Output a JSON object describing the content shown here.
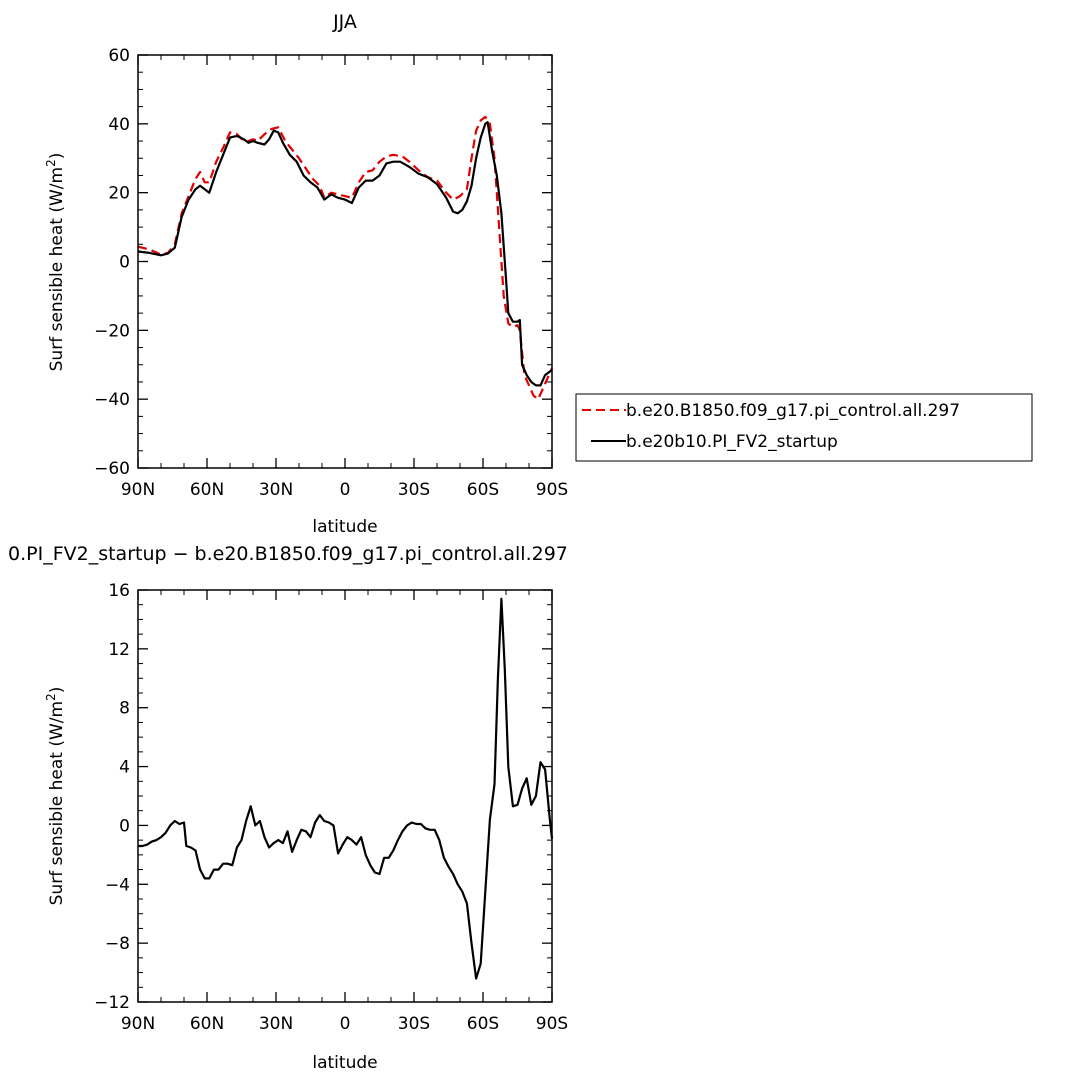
{
  "chart_data": [
    {
      "type": "line",
      "title": "JJA",
      "xlabel": "latitude",
      "ylabel": "Surf sensible heat (W/m²)",
      "ylabel_main": "Surf sensible heat (W/m",
      "ylabel_sup": "2",
      "ylabel_close": ")",
      "xlim": [
        90,
        -90
      ],
      "ylim": [
        -60,
        60
      ],
      "xticks": [
        90,
        60,
        30,
        0,
        -30,
        -60,
        -90
      ],
      "xtick_labels": [
        "90N",
        "60N",
        "30N",
        "0",
        "30S",
        "60S",
        "90S"
      ],
      "yticks": [
        -60,
        -40,
        -20,
        0,
        20,
        40,
        60
      ],
      "ytick_labels": [
        "−60",
        "−40",
        "−20",
        "0",
        "20",
        "40",
        "60"
      ],
      "grid": false,
      "legend_position": "right",
      "series": [
        {
          "name": "b.e20.B1850.f09_g17.pi_control.all.297",
          "color": "#e00000",
          "dash": "dashed",
          "points": [
            [
              90,
              4.3
            ],
            [
              85,
              3.5
            ],
            [
              80,
              2
            ],
            [
              77,
              2.5
            ],
            [
              74,
              5
            ],
            [
              71,
              14
            ],
            [
              68,
              19
            ],
            [
              65,
              24
            ],
            [
              63,
              26
            ],
            [
              61,
              23
            ],
            [
              59,
              23
            ],
            [
              56,
              29
            ],
            [
              53,
              33
            ],
            [
              50,
              37.5
            ],
            [
              47,
              37
            ],
            [
              44,
              35
            ],
            [
              42,
              35
            ],
            [
              40,
              35.5
            ],
            [
              38,
              35
            ],
            [
              35,
              37
            ],
            [
              32,
              38.5
            ],
            [
              29,
              39
            ],
            [
              26,
              35
            ],
            [
              23,
              32.5
            ],
            [
              20,
              30
            ],
            [
              17,
              27
            ],
            [
              14,
              24
            ],
            [
              11,
              22
            ],
            [
              9,
              18.5
            ],
            [
              6,
              20
            ],
            [
              3,
              19.5
            ],
            [
              0,
              19
            ],
            [
              -3,
              18.5
            ],
            [
              -6,
              23
            ],
            [
              -9,
              26
            ],
            [
              -12,
              26.5
            ],
            [
              -15,
              29
            ],
            [
              -18,
              30.5
            ],
            [
              -21,
              31
            ],
            [
              -25,
              30.5
            ],
            [
              -28,
              29
            ],
            [
              -32,
              26.5
            ],
            [
              -36,
              24.5
            ],
            [
              -40,
              23.5
            ],
            [
              -44,
              20
            ],
            [
              -47,
              18
            ],
            [
              -50,
              19
            ],
            [
              -53,
              21
            ],
            [
              -55,
              30
            ],
            [
              -57,
              38
            ],
            [
              -59,
              41
            ],
            [
              -61,
              42
            ],
            [
              -63,
              40
            ],
            [
              -65,
              30
            ],
            [
              -67,
              10
            ],
            [
              -69,
              -10
            ],
            [
              -71,
              -18
            ],
            [
              -73,
              -19
            ],
            [
              -75,
              -18.5
            ],
            [
              -76,
              -20
            ],
            [
              -78,
              -33
            ],
            [
              -80,
              -36
            ],
            [
              -82,
              -39
            ],
            [
              -84,
              -40
            ],
            [
              -86,
              -37
            ],
            [
              -88,
              -34
            ],
            [
              -90,
              -31
            ]
          ]
        },
        {
          "name": "b.e20b10.PI_FV2_startup",
          "color": "#000000",
          "dash": "solid",
          "points": [
            [
              90,
              2.9
            ],
            [
              85,
              2.5
            ],
            [
              80,
              1.8
            ],
            [
              77,
              2.3
            ],
            [
              74,
              4
            ],
            [
              71,
              13
            ],
            [
              68,
              18
            ],
            [
              65,
              21
            ],
            [
              63,
              22
            ],
            [
              61,
              21
            ],
            [
              59,
              20
            ],
            [
              56,
              26
            ],
            [
              53,
              31
            ],
            [
              50,
              36
            ],
            [
              47,
              36.5
            ],
            [
              44,
              35.5
            ],
            [
              42,
              34.5
            ],
            [
              40,
              35
            ],
            [
              38,
              34.5
            ],
            [
              35,
              34
            ],
            [
              33,
              35.5
            ],
            [
              31,
              38
            ],
            [
              29,
              37.5
            ],
            [
              27,
              34.5
            ],
            [
              24,
              31
            ],
            [
              21,
              29
            ],
            [
              18,
              25
            ],
            [
              15,
              23
            ],
            [
              12,
              21.5
            ],
            [
              9,
              18
            ],
            [
              6,
              19.5
            ],
            [
              3,
              18.5
            ],
            [
              0,
              18
            ],
            [
              -3,
              17
            ],
            [
              -6,
              21.5
            ],
            [
              -9,
              23.5
            ],
            [
              -12,
              23.5
            ],
            [
              -15,
              25
            ],
            [
              -18,
              28.5
            ],
            [
              -21,
              29
            ],
            [
              -24,
              29
            ],
            [
              -28,
              27.5
            ],
            [
              -32,
              25.5
            ],
            [
              -36,
              24.5
            ],
            [
              -40,
              22.5
            ],
            [
              -44,
              18.5
            ],
            [
              -47,
              14.5
            ],
            [
              -49,
              14
            ],
            [
              -51,
              15
            ],
            [
              -53,
              17.5
            ],
            [
              -55,
              22
            ],
            [
              -57,
              30
            ],
            [
              -59,
              36
            ],
            [
              -61,
              40
            ],
            [
              -62,
              40.5
            ],
            [
              -64,
              32
            ],
            [
              -66,
              25
            ],
            [
              -68,
              14
            ],
            [
              -70,
              -5
            ],
            [
              -71,
              -15
            ],
            [
              -73,
              -17.5
            ],
            [
              -75,
              -17.5
            ],
            [
              -76,
              -17
            ],
            [
              -77,
              -30
            ],
            [
              -79,
              -33
            ],
            [
              -81,
              -35
            ],
            [
              -83,
              -36
            ],
            [
              -85,
              -36
            ],
            [
              -87,
              -33
            ],
            [
              -90,
              -31.5
            ]
          ]
        }
      ]
    },
    {
      "type": "line",
      "title": "0.PI_FV2_startup − b.e20.B1850.f09_g17.pi_control.all.297",
      "xlabel": "latitude",
      "ylabel": "Surf sensible heat (W/m²)",
      "ylabel_main": "Surf sensible heat (W/m",
      "ylabel_sup": "2",
      "ylabel_close": ")",
      "xlim": [
        90,
        -90
      ],
      "ylim": [
        -12,
        16
      ],
      "xticks": [
        90,
        60,
        30,
        0,
        -30,
        -60,
        -90
      ],
      "xtick_labels": [
        "90N",
        "60N",
        "30N",
        "0",
        "30S",
        "60S",
        "90S"
      ],
      "yticks": [
        -12,
        -8,
        -4,
        0,
        4,
        8,
        12,
        16
      ],
      "ytick_labels": [
        "−12",
        "−8",
        "−4",
        "0",
        "4",
        "8",
        "12",
        "16"
      ],
      "grid": false,
      "series": [
        {
          "color": "#000000",
          "dash": "solid",
          "points": [
            [
              90,
              -1.4
            ],
            [
              88,
              -1.4
            ],
            [
              86,
              -1.3
            ],
            [
              84,
              -1.1
            ],
            [
              82,
              -1
            ],
            [
              80,
              -0.8
            ],
            [
              78,
              -0.5
            ],
            [
              76,
              0
            ],
            [
              74,
              0.3
            ],
            [
              72,
              0.1
            ],
            [
              70,
              0.2
            ],
            [
              69,
              -1.4
            ],
            [
              67,
              -1.5
            ],
            [
              65,
              -1.7
            ],
            [
              63,
              -3
            ],
            [
              61,
              -3.6
            ],
            [
              59,
              -3.6
            ],
            [
              57,
              -3
            ],
            [
              55,
              -3
            ],
            [
              53,
              -2.6
            ],
            [
              51,
              -2.6
            ],
            [
              49,
              -2.7
            ],
            [
              47,
              -1.5
            ],
            [
              45,
              -1
            ],
            [
              43,
              0.3
            ],
            [
              41,
              1.3
            ],
            [
              39,
              0
            ],
            [
              37,
              0.3
            ],
            [
              35,
              -0.8
            ],
            [
              33,
              -1.5
            ],
            [
              31,
              -1.2
            ],
            [
              29,
              -1
            ],
            [
              27,
              -1.2
            ],
            [
              25,
              -0.4
            ],
            [
              23,
              -1.8
            ],
            [
              21,
              -1
            ],
            [
              19,
              -0.3
            ],
            [
              17,
              -0.4
            ],
            [
              15,
              -0.8
            ],
            [
              13,
              0.2
            ],
            [
              11,
              0.7
            ],
            [
              9,
              0.3
            ],
            [
              7,
              0.2
            ],
            [
              5,
              0
            ],
            [
              3,
              -1.9
            ],
            [
              1,
              -1.3
            ],
            [
              -1,
              -0.8
            ],
            [
              -3,
              -1
            ],
            [
              -5,
              -1.3
            ],
            [
              -7,
              -0.8
            ],
            [
              -9,
              -2
            ],
            [
              -11,
              -2.7
            ],
            [
              -13,
              -3.2
            ],
            [
              -15,
              -3.3
            ],
            [
              -17,
              -2.2
            ],
            [
              -19,
              -2.2
            ],
            [
              -21,
              -1.7
            ],
            [
              -23,
              -1
            ],
            [
              -25,
              -0.4
            ],
            [
              -27,
              0
            ],
            [
              -29,
              0.2
            ],
            [
              -31,
              0.1
            ],
            [
              -33,
              0.1
            ],
            [
              -35,
              -0.2
            ],
            [
              -37,
              -0.3
            ],
            [
              -39,
              -0.3
            ],
            [
              -41,
              -1
            ],
            [
              -43,
              -2.2
            ],
            [
              -45,
              -2.8
            ],
            [
              -47,
              -3.3
            ],
            [
              -49,
              -4
            ],
            [
              -51,
              -4.5
            ],
            [
              -53,
              -5.3
            ],
            [
              -55,
              -8
            ],
            [
              -57,
              -10.4
            ],
            [
              -59,
              -9.4
            ],
            [
              -61,
              -4.5
            ],
            [
              -63,
              0.4
            ],
            [
              -65,
              2.8
            ],
            [
              -66.5,
              10
            ],
            [
              -68,
              15.4
            ],
            [
              -69.5,
              10.6
            ],
            [
              -71,
              4
            ],
            [
              -73,
              1.3
            ],
            [
              -75,
              1.4
            ],
            [
              -77,
              2.5
            ],
            [
              -79,
              3.2
            ],
            [
              -81,
              1.4
            ],
            [
              -83,
              2
            ],
            [
              -85,
              4.3
            ],
            [
              -87,
              3.8
            ],
            [
              -89,
              0.5
            ],
            [
              -90,
              -0.9
            ]
          ]
        }
      ]
    }
  ]
}
